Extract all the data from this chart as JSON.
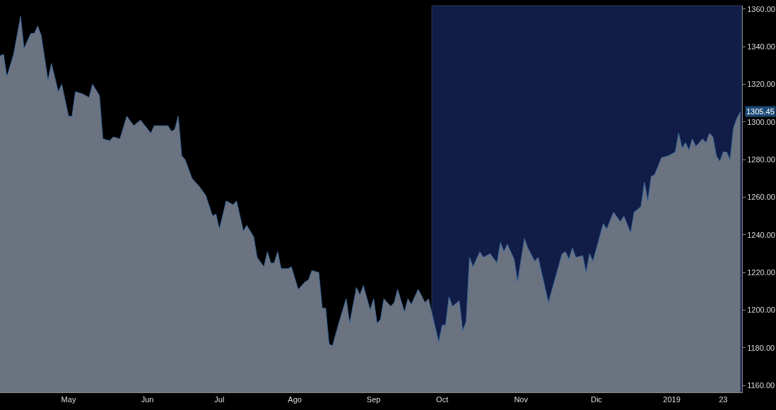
{
  "chart_data": {
    "type": "area",
    "x": [
      "2018-04-03",
      "2018-04-04",
      "2018-04-05",
      "2018-04-09",
      "2018-04-11",
      "2018-04-12",
      "2018-04-16",
      "2018-04-17",
      "2018-04-18",
      "2018-04-19",
      "2018-04-23",
      "2018-04-24",
      "2018-04-26",
      "2018-04-27",
      "2018-05-01",
      "2018-05-02",
      "2018-05-03",
      "2018-05-07",
      "2018-05-09",
      "2018-05-10",
      "2018-05-14",
      "2018-05-15",
      "2018-05-17",
      "2018-05-18",
      "2018-05-22",
      "2018-05-24",
      "2018-05-28",
      "2018-05-30",
      "2018-06-04",
      "2018-06-05",
      "2018-06-08",
      "2018-06-11",
      "2018-06-12",
      "2018-06-13",
      "2018-06-14",
      "2018-06-15",
      "2018-06-18",
      "2018-06-20",
      "2018-06-22",
      "2018-06-26",
      "2018-06-28",
      "2018-06-29",
      "2018-07-02",
      "2018-07-04",
      "2018-07-06",
      "2018-07-09",
      "2018-07-11",
      "2018-07-12",
      "2018-07-16",
      "2018-07-17",
      "2018-07-19",
      "2018-07-20",
      "2018-07-23",
      "2018-07-24",
      "2018-07-25",
      "2018-07-26",
      "2018-07-30",
      "2018-07-31",
      "2018-08-02",
      "2018-08-06",
      "2018-08-07",
      "2018-08-08",
      "2018-08-10",
      "2018-08-13",
      "2018-08-14",
      "2018-08-15",
      "2018-08-16",
      "2018-08-20",
      "2018-08-22",
      "2018-08-23",
      "2018-08-27",
      "2018-08-28",
      "2018-08-29",
      "2018-08-31",
      "2018-09-03",
      "2018-09-04",
      "2018-09-05",
      "2018-09-06",
      "2018-09-10",
      "2018-09-11",
      "2018-09-12",
      "2018-09-14",
      "2018-09-17",
      "2018-09-18",
      "2018-09-20",
      "2018-09-24",
      "2018-09-25",
      "2018-09-28",
      "2018-10-01",
      "2018-10-02",
      "2018-10-03",
      "2018-10-04",
      "2018-10-08",
      "2018-10-09",
      "2018-10-10",
      "2018-10-11",
      "2018-10-12",
      "2018-10-16",
      "2018-10-17",
      "2018-10-19",
      "2018-10-23",
      "2018-10-24",
      "2018-10-25",
      "2018-10-26",
      "2018-10-30",
      "2018-10-31",
      "2018-11-02",
      "2018-11-05",
      "2018-11-07",
      "2018-11-08",
      "2018-11-13",
      "2018-11-15",
      "2018-11-19",
      "2018-11-20",
      "2018-11-21",
      "2018-11-22",
      "2018-11-23",
      "2018-11-27",
      "2018-11-28",
      "2018-11-29",
      "2018-11-30",
      "2018-12-05",
      "2018-12-06",
      "2018-12-10",
      "2018-12-12",
      "2018-12-13",
      "2018-12-17",
      "2018-12-18",
      "2018-12-20",
      "2018-12-21",
      "2018-12-24",
      "2018-12-25",
      "2018-12-26",
      "2018-12-28",
      "2019-01-01",
      "2019-01-03",
      "2019-01-04",
      "2019-01-07",
      "2019-01-08",
      "2019-01-09",
      "2019-01-10",
      "2019-01-11",
      "2019-01-15",
      "2019-01-16",
      "2019-01-17",
      "2019-01-18",
      "2019-01-21",
      "2019-01-22",
      "2019-01-23",
      "2019-01-24",
      "2019-01-25",
      "2019-01-28",
      "2019-01-29",
      "2019-01-30"
    ],
    "series": [
      {
        "color": "#6b7380",
        "values": [
          1335,
          1336,
          1324,
          1336,
          1356,
          1339,
          1347,
          1347,
          1351,
          1346,
          1322,
          1331,
          1316,
          1320,
          1303,
          1303,
          1316,
          1315,
          1313,
          1320,
          1314,
          1291,
          1290,
          1292,
          1291,
          1303,
          1298,
          1301,
          1294,
          1298,
          1298,
          1298,
          1295,
          1296,
          1303,
          1282,
          1280,
          1270,
          1266,
          1261,
          1250,
          1251,
          1243,
          1258,
          1256,
          1258,
          1242,
          1245,
          1239,
          1228,
          1223,
          1231,
          1225,
          1225,
          1231,
          1222,
          1222,
          1223,
          1211,
          1215,
          1216,
          1221,
          1220,
          1201,
          1201,
          1182,
          1181,
          1194,
          1206,
          1193,
          1212,
          1208,
          1213,
          1200,
          1206,
          1193,
          1195,
          1206,
          1202,
          1204,
          1211,
          1199,
          1206,
          1203,
          1211,
          1204,
          1206,
          1183,
          1192,
          1192,
          1207,
          1202,
          1205,
          1189,
          1194,
          1228,
          1223,
          1231,
          1228,
          1230,
          1225,
          1236,
          1231,
          1235,
          1227,
          1215,
          1238,
          1233,
          1226,
          1228,
          1204,
          1217,
          1230,
          1231,
          1227,
          1233,
          1228,
          1229,
          1220,
          1230,
          1226,
          1246,
          1243,
          1252,
          1247,
          1250,
          1241,
          1252,
          1255,
          1268,
          1258,
          1271,
          1272,
          1281,
          1282,
          1284,
          1294,
          1286,
          1289,
          1285,
          1291,
          1287,
          1291,
          1289,
          1294,
          1292,
          1282,
          1279,
          1284,
          1284,
          1280,
          1297,
          1302,
          1305.45
        ]
      }
    ],
    "xlim": [
      "2018-04-03",
      "2019-01-30T12:00"
    ],
    "ylim": [
      1156.3,
      1361.8
    ],
    "xticks": [
      {
        "value": "2018-05-01",
        "label": "May"
      },
      {
        "value": "2018-06-01",
        "label": "Jun"
      },
      {
        "value": "2018-07-02",
        "label": "Jul"
      },
      {
        "value": "2018-08-01",
        "label": "Ago"
      },
      {
        "value": "2018-09-03",
        "label": "Sep"
      },
      {
        "value": "2018-10-01",
        "label": "Oct"
      },
      {
        "value": "2018-11-01",
        "label": "Nov"
      },
      {
        "value": "2018-12-03",
        "label": "Dic"
      },
      {
        "value": "2019-01-02",
        "label": "2019"
      },
      {
        "value": "2019-01-23",
        "label": "23"
      }
    ],
    "yticks": [
      {
        "value": 1160,
        "label": "1160.00"
      },
      {
        "value": 1180,
        "label": "1180.00"
      },
      {
        "value": 1200,
        "label": "1200.00"
      },
      {
        "value": 1220,
        "label": "1220.00"
      },
      {
        "value": 1240,
        "label": "1240.00"
      },
      {
        "value": 1260,
        "label": "1260.00"
      },
      {
        "value": 1280,
        "label": "1280.00"
      },
      {
        "value": 1300,
        "label": "1300.00"
      },
      {
        "value": 1320,
        "label": "1320.00"
      },
      {
        "value": 1340,
        "label": "1340.00"
      },
      {
        "value": 1360,
        "label": "1360.00"
      }
    ],
    "bands": [
      {
        "axis": "x",
        "from": "2018-09-26",
        "to": "2019-01-30T12:00",
        "color": "#3355cc"
      }
    ],
    "annotations": [
      {
        "text": "1305.45",
        "x": "2019-01-30",
        "y": 1305.45
      }
    ]
  }
}
